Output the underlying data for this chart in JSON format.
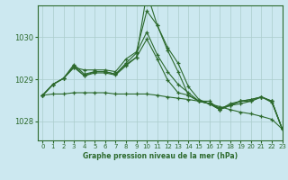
{
  "title": "Graphe pression niveau de la mer (hPa)",
  "bg_color": "#cce8f0",
  "grid_color": "#aacccc",
  "line_color": "#2d6a2d",
  "xlim": [
    -0.5,
    23
  ],
  "ylim": [
    1027.55,
    1030.75
  ],
  "yticks": [
    1028,
    1029,
    1030
  ],
  "xticks": [
    0,
    1,
    2,
    3,
    4,
    5,
    6,
    7,
    8,
    9,
    10,
    11,
    12,
    13,
    14,
    15,
    16,
    17,
    18,
    19,
    20,
    21,
    22,
    23
  ],
  "series": [
    [
      1028.62,
      1028.88,
      1029.02,
      1029.28,
      1029.22,
      1029.22,
      1029.22,
      1029.18,
      1029.48,
      1029.65,
      1030.62,
      1030.28,
      1029.75,
      1029.38,
      1028.82,
      1028.52,
      1028.42,
      1028.32,
      1028.38,
      1028.48,
      1028.52,
      1028.58,
      1028.45,
      1027.82
    ],
    [
      1028.62,
      1028.88,
      1029.02,
      1029.32,
      1029.08,
      1029.18,
      1029.18,
      1029.12,
      1029.38,
      1029.62,
      1030.12,
      1029.58,
      1029.18,
      1028.88,
      1028.68,
      1028.48,
      1028.48,
      1028.28,
      1028.42,
      1028.48,
      1028.52,
      1028.58,
      1028.48,
      1027.82
    ],
    [
      1028.62,
      1028.88,
      1029.02,
      1029.35,
      1029.12,
      1029.18,
      1029.18,
      1029.12,
      1029.35,
      1029.52,
      1029.95,
      1029.48,
      1028.98,
      1028.68,
      1028.62,
      1028.48,
      1028.42,
      1028.28,
      1028.38,
      1028.42,
      1028.48,
      1028.58,
      1028.48,
      1027.82
    ],
    [
      1028.62,
      1028.88,
      1029.02,
      1029.28,
      1029.08,
      1029.15,
      1029.15,
      1029.1,
      1029.32,
      1029.52,
      1031.05,
      1030.28,
      1029.68,
      1029.18,
      1028.62,
      1028.48,
      1028.42,
      1028.28,
      1028.38,
      1028.48,
      1028.48,
      1028.58,
      1028.48,
      1027.82
    ],
    [
      1028.62,
      1028.65,
      1028.65,
      1028.68,
      1028.68,
      1028.68,
      1028.68,
      1028.65,
      1028.65,
      1028.65,
      1028.65,
      1028.62,
      1028.58,
      1028.55,
      1028.52,
      1028.48,
      1028.42,
      1028.35,
      1028.28,
      1028.22,
      1028.18,
      1028.12,
      1028.05,
      1027.82
    ]
  ]
}
